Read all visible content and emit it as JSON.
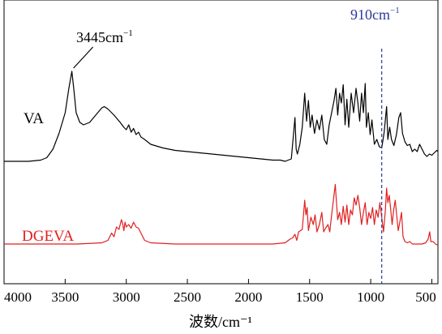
{
  "chart_data": {
    "type": "line",
    "title": "",
    "xlabel": "波数/cm⁻¹",
    "ylabel": "",
    "xlim": [
      4000,
      450
    ],
    "x_reversed": true,
    "xticks": [
      4000,
      3500,
      3000,
      2500,
      2000,
      1500,
      1000,
      500
    ],
    "y_axis_shown": false,
    "grid": false,
    "series": [
      {
        "name": "VA",
        "color": "#000000",
        "points": [
          [
            4000,
            0.22
          ],
          [
            3800,
            0.22
          ],
          [
            3700,
            0.23
          ],
          [
            3650,
            0.25
          ],
          [
            3600,
            0.32
          ],
          [
            3550,
            0.45
          ],
          [
            3500,
            0.62
          ],
          [
            3470,
            0.82
          ],
          [
            3445,
            0.96
          ],
          [
            3430,
            0.82
          ],
          [
            3410,
            0.62
          ],
          [
            3380,
            0.54
          ],
          [
            3350,
            0.52
          ],
          [
            3300,
            0.54
          ],
          [
            3250,
            0.6
          ],
          [
            3200,
            0.66
          ],
          [
            3180,
            0.67
          ],
          [
            3150,
            0.65
          ],
          [
            3100,
            0.6
          ],
          [
            3050,
            0.54
          ],
          [
            3020,
            0.5
          ],
          [
            3000,
            0.48
          ],
          [
            2980,
            0.52
          ],
          [
            2960,
            0.46
          ],
          [
            2940,
            0.49
          ],
          [
            2920,
            0.44
          ],
          [
            2900,
            0.46
          ],
          [
            2880,
            0.42
          ],
          [
            2850,
            0.4
          ],
          [
            2800,
            0.36
          ],
          [
            2700,
            0.33
          ],
          [
            2600,
            0.31
          ],
          [
            2500,
            0.3
          ],
          [
            2400,
            0.29
          ],
          [
            2300,
            0.28
          ],
          [
            2200,
            0.27
          ],
          [
            2100,
            0.26
          ],
          [
            2000,
            0.25
          ],
          [
            1900,
            0.24
          ],
          [
            1800,
            0.23
          ],
          [
            1740,
            0.23
          ],
          [
            1700,
            0.22
          ],
          [
            1650,
            0.24
          ],
          [
            1620,
            0.58
          ],
          [
            1610,
            0.32
          ],
          [
            1600,
            0.28
          ],
          [
            1580,
            0.36
          ],
          [
            1560,
            0.5
          ],
          [
            1540,
            0.78
          ],
          [
            1525,
            0.55
          ],
          [
            1510,
            0.72
          ],
          [
            1495,
            0.5
          ],
          [
            1480,
            0.6
          ],
          [
            1460,
            0.45
          ],
          [
            1440,
            0.56
          ],
          [
            1420,
            0.48
          ],
          [
            1400,
            0.6
          ],
          [
            1380,
            0.4
          ],
          [
            1360,
            0.36
          ],
          [
            1340,
            0.52
          ],
          [
            1320,
            0.62
          ],
          [
            1300,
            0.72
          ],
          [
            1285,
            0.82
          ],
          [
            1270,
            0.6
          ],
          [
            1255,
            0.78
          ],
          [
            1240,
            0.7
          ],
          [
            1225,
            0.85
          ],
          [
            1210,
            0.52
          ],
          [
            1195,
            0.73
          ],
          [
            1180,
            0.5
          ],
          [
            1160,
            0.78
          ],
          [
            1140,
            0.62
          ],
          [
            1120,
            0.82
          ],
          [
            1105,
            0.7
          ],
          [
            1090,
            0.55
          ],
          [
            1075,
            0.78
          ],
          [
            1060,
            0.62
          ],
          [
            1045,
            0.86
          ],
          [
            1035,
            0.5
          ],
          [
            1020,
            0.62
          ],
          [
            1005,
            0.44
          ],
          [
            990,
            0.56
          ],
          [
            970,
            0.36
          ],
          [
            950,
            0.4
          ],
          [
            930,
            0.34
          ],
          [
            910,
            0.33
          ],
          [
            890,
            0.46
          ],
          [
            870,
            0.67
          ],
          [
            860,
            0.4
          ],
          [
            845,
            0.5
          ],
          [
            830,
            0.4
          ],
          [
            810,
            0.35
          ],
          [
            790,
            0.44
          ],
          [
            770,
            0.58
          ],
          [
            755,
            0.62
          ],
          [
            740,
            0.45
          ],
          [
            720,
            0.38
          ],
          [
            700,
            0.35
          ],
          [
            680,
            0.36
          ],
          [
            660,
            0.3
          ],
          [
            640,
            0.32
          ],
          [
            620,
            0.3
          ],
          [
            600,
            0.36
          ],
          [
            580,
            0.32
          ],
          [
            560,
            0.28
          ],
          [
            540,
            0.26
          ],
          [
            520,
            0.28
          ],
          [
            500,
            0.27
          ],
          [
            480,
            0.29
          ],
          [
            460,
            0.31
          ],
          [
            450,
            0.3
          ]
        ]
      },
      {
        "name": "DGEVA",
        "color": "#e02020",
        "points": [
          [
            4000,
            -0.46
          ],
          [
            3800,
            -0.46
          ],
          [
            3600,
            -0.46
          ],
          [
            3400,
            -0.46
          ],
          [
            3200,
            -0.45
          ],
          [
            3150,
            -0.43
          ],
          [
            3120,
            -0.37
          ],
          [
            3100,
            -0.4
          ],
          [
            3080,
            -0.32
          ],
          [
            3060,
            -0.34
          ],
          [
            3040,
            -0.26
          ],
          [
            3030,
            -0.29
          ],
          [
            3020,
            -0.35
          ],
          [
            3010,
            -0.28
          ],
          [
            3000,
            -0.32
          ],
          [
            2980,
            -0.3
          ],
          [
            2960,
            -0.33
          ],
          [
            2940,
            -0.28
          ],
          [
            2920,
            -0.32
          ],
          [
            2900,
            -0.33
          ],
          [
            2880,
            -0.37
          ],
          [
            2850,
            -0.43
          ],
          [
            2800,
            -0.45
          ],
          [
            2600,
            -0.46
          ],
          [
            2400,
            -0.46
          ],
          [
            2200,
            -0.46
          ],
          [
            2000,
            -0.46
          ],
          [
            1800,
            -0.46
          ],
          [
            1700,
            -0.45
          ],
          [
            1660,
            -0.42
          ],
          [
            1640,
            -0.41
          ],
          [
            1620,
            -0.38
          ],
          [
            1605,
            -0.43
          ],
          [
            1590,
            -0.36
          ],
          [
            1560,
            -0.34
          ],
          [
            1540,
            -0.1
          ],
          [
            1530,
            -0.22
          ],
          [
            1520,
            -0.16
          ],
          [
            1510,
            -0.35
          ],
          [
            1490,
            -0.24
          ],
          [
            1470,
            -0.3
          ],
          [
            1455,
            -0.22
          ],
          [
            1440,
            -0.36
          ],
          [
            1420,
            -0.3
          ],
          [
            1400,
            -0.2
          ],
          [
            1385,
            -0.36
          ],
          [
            1370,
            -0.33
          ],
          [
            1350,
            -0.3
          ],
          [
            1335,
            -0.36
          ],
          [
            1320,
            -0.22
          ],
          [
            1305,
            -0.1
          ],
          [
            1290,
            0.03
          ],
          [
            1280,
            -0.12
          ],
          [
            1270,
            -0.26
          ],
          [
            1255,
            -0.2
          ],
          [
            1240,
            -0.3
          ],
          [
            1225,
            -0.15
          ],
          [
            1210,
            -0.28
          ],
          [
            1195,
            -0.14
          ],
          [
            1180,
            -0.3
          ],
          [
            1165,
            -0.18
          ],
          [
            1150,
            -0.22
          ],
          [
            1135,
            -0.08
          ],
          [
            1120,
            -0.14
          ],
          [
            1105,
            -0.06
          ],
          [
            1090,
            -0.16
          ],
          [
            1075,
            -0.3
          ],
          [
            1060,
            -0.2
          ],
          [
            1045,
            -0.12
          ],
          [
            1030,
            -0.3
          ],
          [
            1015,
            -0.2
          ],
          [
            1000,
            -0.25
          ],
          [
            985,
            -0.16
          ],
          [
            970,
            -0.3
          ],
          [
            955,
            -0.18
          ],
          [
            940,
            -0.24
          ],
          [
            925,
            -0.12
          ],
          [
            910,
            -0.24
          ],
          [
            895,
            -0.36
          ],
          [
            880,
            -0.18
          ],
          [
            870,
            0.0
          ],
          [
            860,
            -0.12
          ],
          [
            848,
            -0.06
          ],
          [
            836,
            -0.18
          ],
          [
            825,
            -0.3
          ],
          [
            812,
            -0.18
          ],
          [
            800,
            -0.1
          ],
          [
            788,
            -0.22
          ],
          [
            775,
            -0.35
          ],
          [
            762,
            -0.28
          ],
          [
            748,
            -0.2
          ],
          [
            735,
            -0.4
          ],
          [
            720,
            -0.44
          ],
          [
            700,
            -0.45
          ],
          [
            680,
            -0.44
          ],
          [
            660,
            -0.46
          ],
          [
            620,
            -0.46
          ],
          [
            580,
            -0.46
          ],
          [
            550,
            -0.45
          ],
          [
            530,
            -0.42
          ],
          [
            518,
            -0.36
          ],
          [
            508,
            -0.44
          ],
          [
            490,
            -0.44
          ],
          [
            470,
            -0.46
          ],
          [
            450,
            -0.47
          ]
        ]
      }
    ],
    "annotations": {
      "peak_label_prefix": "3445cm",
      "peak_label_sup": "−1",
      "peak_x": 3445,
      "marker_label_prefix": "910cm",
      "marker_label_sup": "−1",
      "marker_x": 910,
      "marker_color": "#2d3a9a"
    },
    "legend_labels": [
      {
        "text": "VA",
        "color": "#000000"
      },
      {
        "text": "DGEVA",
        "color": "#e02020"
      }
    ]
  }
}
